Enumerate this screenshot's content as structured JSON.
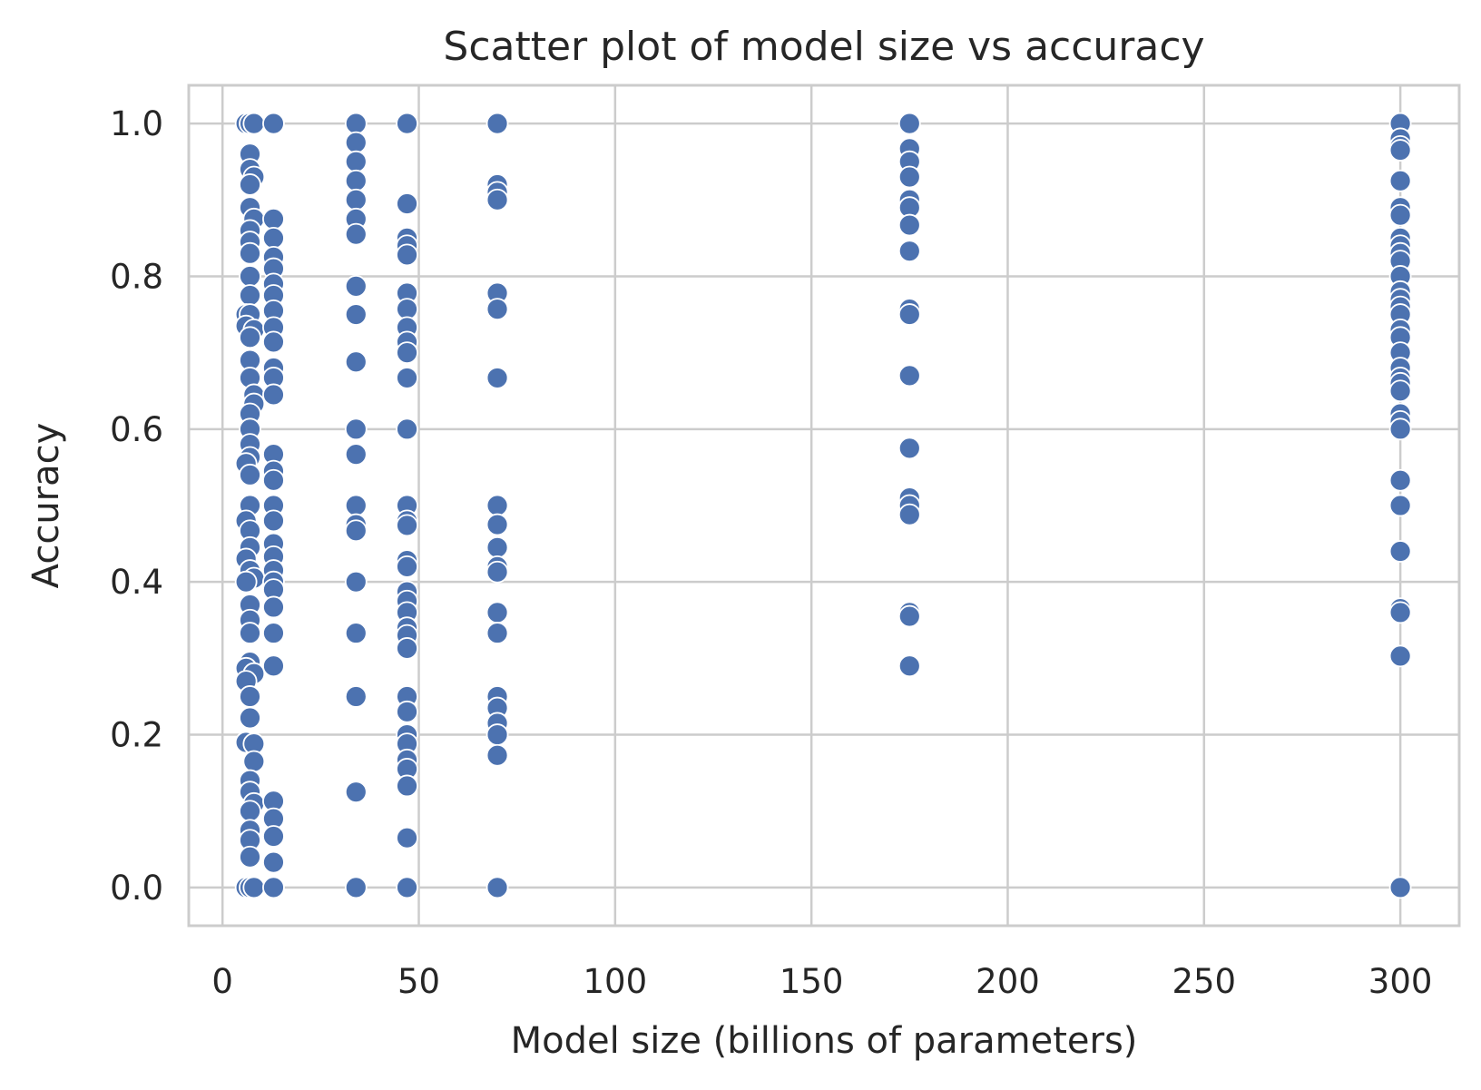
{
  "chart_data": {
    "type": "scatter",
    "title": "Scatter plot of model size vs accuracy",
    "xlabel": "Model size (billions of parameters)",
    "ylabel": "Accuracy",
    "xlim": [
      -8.6,
      315
    ],
    "ylim": [
      -0.05,
      1.05
    ],
    "xticks": [
      0,
      50,
      100,
      150,
      200,
      250,
      300
    ],
    "xtick_labels": [
      "0",
      "50",
      "100",
      "150",
      "200",
      "250",
      "300"
    ],
    "yticks": [
      0.0,
      0.2,
      0.4,
      0.6,
      0.8,
      1.0
    ],
    "ytick_labels": [
      "0.0",
      "0.2",
      "0.4",
      "0.6",
      "0.8",
      "1.0"
    ],
    "grid": true,
    "legend": "none",
    "colors": {
      "point": "#4c72b0",
      "grid": "#cccccc",
      "text": "#262626"
    },
    "series": [
      {
        "points": [
          {
            "x": 6,
            "y": 1.0
          },
          {
            "x": 7,
            "y": 1.0
          },
          {
            "x": 8,
            "y": 1.0
          },
          {
            "x": 7,
            "y": 0.96
          },
          {
            "x": 7,
            "y": 0.94
          },
          {
            "x": 8,
            "y": 0.93
          },
          {
            "x": 7,
            "y": 0.92
          },
          {
            "x": 7,
            "y": 0.89
          },
          {
            "x": 8,
            "y": 0.875
          },
          {
            "x": 7,
            "y": 0.86
          },
          {
            "x": 7,
            "y": 0.845
          },
          {
            "x": 7,
            "y": 0.83
          },
          {
            "x": 7,
            "y": 0.8
          },
          {
            "x": 7,
            "y": 0.775
          },
          {
            "x": 6,
            "y": 0.75
          },
          {
            "x": 7,
            "y": 0.75
          },
          {
            "x": 6,
            "y": 0.735
          },
          {
            "x": 8,
            "y": 0.73
          },
          {
            "x": 7,
            "y": 0.72
          },
          {
            "x": 7,
            "y": 0.69
          },
          {
            "x": 7,
            "y": 0.667
          },
          {
            "x": 8,
            "y": 0.645
          },
          {
            "x": 8,
            "y": 0.633
          },
          {
            "x": 7,
            "y": 0.62
          },
          {
            "x": 7,
            "y": 0.6
          },
          {
            "x": 7,
            "y": 0.58
          },
          {
            "x": 7,
            "y": 0.563
          },
          {
            "x": 6,
            "y": 0.555
          },
          {
            "x": 7,
            "y": 0.54
          },
          {
            "x": 7,
            "y": 0.5
          },
          {
            "x": 6,
            "y": 0.48
          },
          {
            "x": 7,
            "y": 0.467
          },
          {
            "x": 7,
            "y": 0.445
          },
          {
            "x": 6,
            "y": 0.43
          },
          {
            "x": 7,
            "y": 0.415
          },
          {
            "x": 8,
            "y": 0.405
          },
          {
            "x": 6,
            "y": 0.4
          },
          {
            "x": 7,
            "y": 0.37
          },
          {
            "x": 7,
            "y": 0.35
          },
          {
            "x": 7,
            "y": 0.333
          },
          {
            "x": 7,
            "y": 0.295
          },
          {
            "x": 6,
            "y": 0.287
          },
          {
            "x": 8,
            "y": 0.28
          },
          {
            "x": 6,
            "y": 0.27
          },
          {
            "x": 7,
            "y": 0.25
          },
          {
            "x": 7,
            "y": 0.222
          },
          {
            "x": 6,
            "y": 0.19
          },
          {
            "x": 8,
            "y": 0.188
          },
          {
            "x": 8,
            "y": 0.165
          },
          {
            "x": 7,
            "y": 0.14
          },
          {
            "x": 7,
            "y": 0.125
          },
          {
            "x": 8,
            "y": 0.11
          },
          {
            "x": 7,
            "y": 0.1
          },
          {
            "x": 7,
            "y": 0.075
          },
          {
            "x": 7,
            "y": 0.062
          },
          {
            "x": 7,
            "y": 0.04
          },
          {
            "x": 6,
            "y": 0.0
          },
          {
            "x": 7,
            "y": 0.0
          },
          {
            "x": 8,
            "y": 0.0
          },
          {
            "x": 13,
            "y": 1.0
          },
          {
            "x": 13,
            "y": 0.875
          },
          {
            "x": 13,
            "y": 0.85
          },
          {
            "x": 13,
            "y": 0.825
          },
          {
            "x": 13,
            "y": 0.81
          },
          {
            "x": 13,
            "y": 0.79
          },
          {
            "x": 13,
            "y": 0.775
          },
          {
            "x": 13,
            "y": 0.755
          },
          {
            "x": 13,
            "y": 0.733
          },
          {
            "x": 13,
            "y": 0.714
          },
          {
            "x": 13,
            "y": 0.68
          },
          {
            "x": 13,
            "y": 0.667
          },
          {
            "x": 13,
            "y": 0.645
          },
          {
            "x": 13,
            "y": 0.567
          },
          {
            "x": 13,
            "y": 0.545
          },
          {
            "x": 13,
            "y": 0.533
          },
          {
            "x": 13,
            "y": 0.5
          },
          {
            "x": 13,
            "y": 0.48
          },
          {
            "x": 13,
            "y": 0.45
          },
          {
            "x": 13,
            "y": 0.433
          },
          {
            "x": 13,
            "y": 0.415
          },
          {
            "x": 13,
            "y": 0.4
          },
          {
            "x": 13,
            "y": 0.39
          },
          {
            "x": 13,
            "y": 0.367
          },
          {
            "x": 13,
            "y": 0.333
          },
          {
            "x": 13,
            "y": 0.29
          },
          {
            "x": 13,
            "y": 0.113
          },
          {
            "x": 13,
            "y": 0.09
          },
          {
            "x": 13,
            "y": 0.067
          },
          {
            "x": 13,
            "y": 0.033
          },
          {
            "x": 13,
            "y": 0.0
          },
          {
            "x": 34,
            "y": 1.0
          },
          {
            "x": 34,
            "y": 0.975
          },
          {
            "x": 34,
            "y": 0.95
          },
          {
            "x": 34,
            "y": 0.925
          },
          {
            "x": 34,
            "y": 0.9
          },
          {
            "x": 34,
            "y": 0.875
          },
          {
            "x": 34,
            "y": 0.855
          },
          {
            "x": 34,
            "y": 0.787
          },
          {
            "x": 34,
            "y": 0.75
          },
          {
            "x": 34,
            "y": 0.688
          },
          {
            "x": 34,
            "y": 0.6
          },
          {
            "x": 34,
            "y": 0.567
          },
          {
            "x": 34,
            "y": 0.5
          },
          {
            "x": 34,
            "y": 0.475
          },
          {
            "x": 34,
            "y": 0.467
          },
          {
            "x": 34,
            "y": 0.4
          },
          {
            "x": 34,
            "y": 0.333
          },
          {
            "x": 34,
            "y": 0.25
          },
          {
            "x": 34,
            "y": 0.125
          },
          {
            "x": 34,
            "y": 0.0
          },
          {
            "x": 47,
            "y": 1.0
          },
          {
            "x": 47,
            "y": 0.895
          },
          {
            "x": 47,
            "y": 0.85
          },
          {
            "x": 47,
            "y": 0.84
          },
          {
            "x": 47,
            "y": 0.828
          },
          {
            "x": 47,
            "y": 0.778
          },
          {
            "x": 47,
            "y": 0.757
          },
          {
            "x": 47,
            "y": 0.733
          },
          {
            "x": 47,
            "y": 0.714
          },
          {
            "x": 47,
            "y": 0.7
          },
          {
            "x": 47,
            "y": 0.667
          },
          {
            "x": 47,
            "y": 0.6
          },
          {
            "x": 47,
            "y": 0.5
          },
          {
            "x": 47,
            "y": 0.48
          },
          {
            "x": 47,
            "y": 0.474
          },
          {
            "x": 47,
            "y": 0.428
          },
          {
            "x": 47,
            "y": 0.42
          },
          {
            "x": 47,
            "y": 0.387
          },
          {
            "x": 47,
            "y": 0.375
          },
          {
            "x": 47,
            "y": 0.36
          },
          {
            "x": 47,
            "y": 0.34
          },
          {
            "x": 47,
            "y": 0.33
          },
          {
            "x": 47,
            "y": 0.313
          },
          {
            "x": 47,
            "y": 0.25
          },
          {
            "x": 47,
            "y": 0.23
          },
          {
            "x": 47,
            "y": 0.2
          },
          {
            "x": 47,
            "y": 0.188
          },
          {
            "x": 47,
            "y": 0.167
          },
          {
            "x": 47,
            "y": 0.155
          },
          {
            "x": 47,
            "y": 0.133
          },
          {
            "x": 47,
            "y": 0.065
          },
          {
            "x": 47,
            "y": 0.0
          },
          {
            "x": 70,
            "y": 1.0
          },
          {
            "x": 70,
            "y": 0.92
          },
          {
            "x": 70,
            "y": 0.91
          },
          {
            "x": 70,
            "y": 0.9
          },
          {
            "x": 70,
            "y": 0.778
          },
          {
            "x": 70,
            "y": 0.757
          },
          {
            "x": 70,
            "y": 0.667
          },
          {
            "x": 70,
            "y": 0.5
          },
          {
            "x": 70,
            "y": 0.475
          },
          {
            "x": 70,
            "y": 0.445
          },
          {
            "x": 70,
            "y": 0.42
          },
          {
            "x": 70,
            "y": 0.413
          },
          {
            "x": 70,
            "y": 0.36
          },
          {
            "x": 70,
            "y": 0.333
          },
          {
            "x": 70,
            "y": 0.25
          },
          {
            "x": 70,
            "y": 0.235
          },
          {
            "x": 70,
            "y": 0.215
          },
          {
            "x": 70,
            "y": 0.2
          },
          {
            "x": 70,
            "y": 0.173
          },
          {
            "x": 70,
            "y": 0.0
          },
          {
            "x": 175,
            "y": 1.0
          },
          {
            "x": 175,
            "y": 0.967
          },
          {
            "x": 175,
            "y": 0.95
          },
          {
            "x": 175,
            "y": 0.93
          },
          {
            "x": 175,
            "y": 0.9
          },
          {
            "x": 175,
            "y": 0.89
          },
          {
            "x": 175,
            "y": 0.867
          },
          {
            "x": 175,
            "y": 0.833
          },
          {
            "x": 175,
            "y": 0.757
          },
          {
            "x": 175,
            "y": 0.75
          },
          {
            "x": 175,
            "y": 0.67
          },
          {
            "x": 175,
            "y": 0.575
          },
          {
            "x": 175,
            "y": 0.51
          },
          {
            "x": 175,
            "y": 0.5
          },
          {
            "x": 175,
            "y": 0.488
          },
          {
            "x": 175,
            "y": 0.36
          },
          {
            "x": 175,
            "y": 0.355
          },
          {
            "x": 175,
            "y": 0.29
          },
          {
            "x": 300,
            "y": 1.0
          },
          {
            "x": 300,
            "y": 0.98
          },
          {
            "x": 300,
            "y": 0.97
          },
          {
            "x": 300,
            "y": 0.965
          },
          {
            "x": 300,
            "y": 0.925
          },
          {
            "x": 300,
            "y": 0.89
          },
          {
            "x": 300,
            "y": 0.88
          },
          {
            "x": 300,
            "y": 0.85
          },
          {
            "x": 300,
            "y": 0.84
          },
          {
            "x": 300,
            "y": 0.83
          },
          {
            "x": 300,
            "y": 0.82
          },
          {
            "x": 300,
            "y": 0.8
          },
          {
            "x": 300,
            "y": 0.78
          },
          {
            "x": 300,
            "y": 0.77
          },
          {
            "x": 300,
            "y": 0.76
          },
          {
            "x": 300,
            "y": 0.75
          },
          {
            "x": 300,
            "y": 0.73
          },
          {
            "x": 300,
            "y": 0.72
          },
          {
            "x": 300,
            "y": 0.7
          },
          {
            "x": 300,
            "y": 0.68
          },
          {
            "x": 300,
            "y": 0.667
          },
          {
            "x": 300,
            "y": 0.66
          },
          {
            "x": 300,
            "y": 0.65
          },
          {
            "x": 300,
            "y": 0.62
          },
          {
            "x": 300,
            "y": 0.61
          },
          {
            "x": 300,
            "y": 0.6
          },
          {
            "x": 300,
            "y": 0.533
          },
          {
            "x": 300,
            "y": 0.5
          },
          {
            "x": 300,
            "y": 0.44
          },
          {
            "x": 300,
            "y": 0.365
          },
          {
            "x": 300,
            "y": 0.36
          },
          {
            "x": 300,
            "y": 0.303
          },
          {
            "x": 300,
            "y": 0.0
          }
        ]
      }
    ]
  }
}
